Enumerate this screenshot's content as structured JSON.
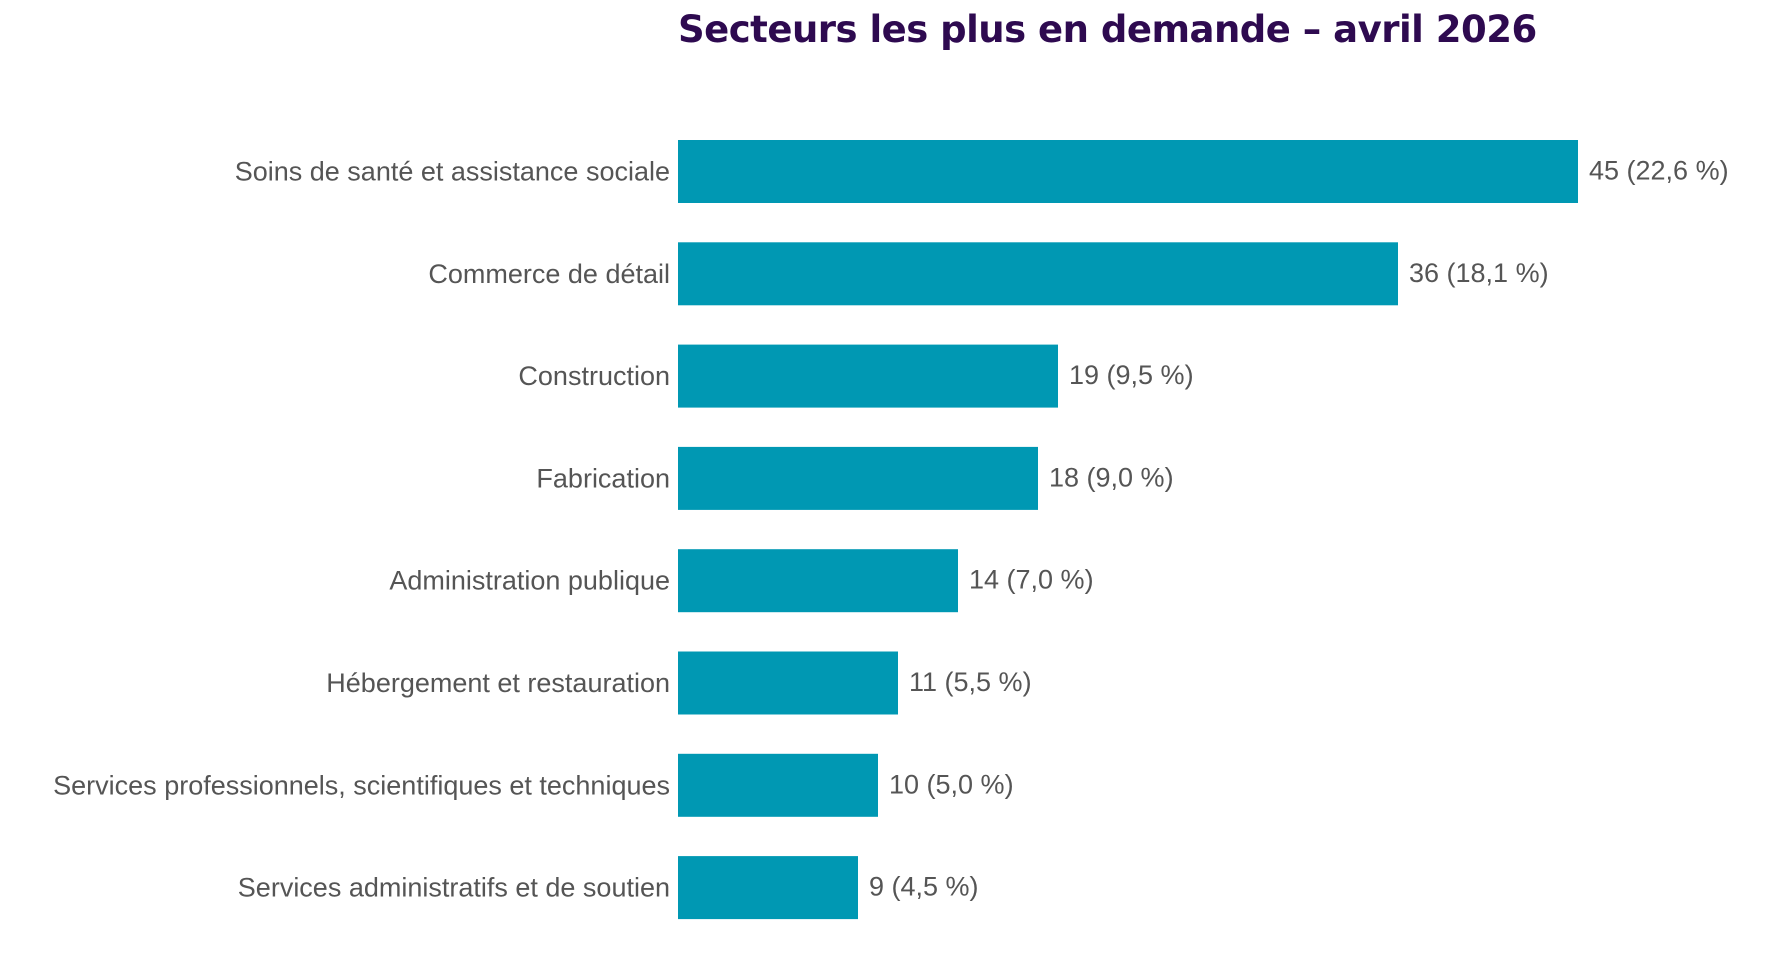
{
  "chart_data": {
    "type": "bar",
    "orientation": "horizontal",
    "title": "Secteurs les plus en demande – avril 2026",
    "categories": [
      "Soins de santé et assistance sociale",
      "Commerce de détail",
      "Construction",
      "Fabrication",
      "Administration publique",
      "Hébergement et restauration",
      "Services professionnels, scientifiques et techniques",
      "Services administratifs et de soutien"
    ],
    "values": [
      45,
      36,
      19,
      18,
      14,
      11,
      10,
      9
    ],
    "percent_labels": [
      "(22,6 %)",
      "(18,1 %)",
      "(9,5 %)",
      "(9,0 %)",
      "(7,0 %)",
      "(5,5 %)",
      "(5,0 %)",
      "(4,5 %)"
    ],
    "xlabel": "",
    "ylabel": "",
    "xlim": [
      0,
      45
    ],
    "grid": false,
    "legend": "none",
    "colors": {
      "bar": "#0098b3",
      "title": "#2e0a50",
      "labels": "#555555"
    }
  }
}
